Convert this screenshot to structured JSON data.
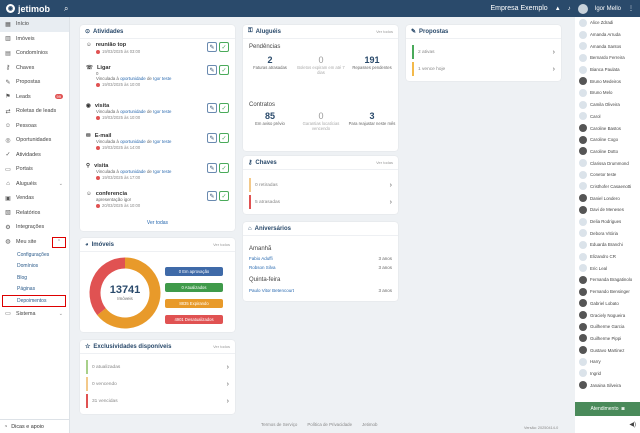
{
  "topbar": {
    "logo": "jetimob",
    "company": "Empresa Exemplo",
    "user": "Igor Mello"
  },
  "sidebar": {
    "items": [
      {
        "icon": "▦",
        "label": "Início",
        "active": true
      },
      {
        "icon": "▥",
        "label": "Imóveis"
      },
      {
        "icon": "▤",
        "label": "Condomínios"
      },
      {
        "icon": "⚷",
        "label": "Chaves"
      },
      {
        "icon": "✎",
        "label": "Propostas"
      },
      {
        "icon": "⚑",
        "label": "Leads",
        "badge": "99"
      },
      {
        "icon": "⇄",
        "label": "Roletas de leads"
      },
      {
        "icon": "☺",
        "label": "Pessoas"
      },
      {
        "icon": "◎",
        "label": "Oportunidades"
      },
      {
        "icon": "✓",
        "label": "Atividades"
      },
      {
        "icon": "▭",
        "label": "Portais"
      },
      {
        "icon": "⌂",
        "label": "Aluguéis",
        "chevron": true
      },
      {
        "icon": "▣",
        "label": "Vendas"
      },
      {
        "icon": "▧",
        "label": "Relatórios"
      },
      {
        "icon": "⚙",
        "label": "Integrações"
      },
      {
        "icon": "◍",
        "label": "Meu site"
      }
    ],
    "sub": [
      "Configurações",
      "Domínios",
      "Blog",
      "Páginas",
      "Depoimentos"
    ],
    "sistema": "Sistema",
    "bottom": "Dicas e apoio"
  },
  "atividades": {
    "title": "Atividades",
    "items": [
      {
        "icon": "☺",
        "title": "reunião top",
        "date": "19/03/2025 às 03:00"
      },
      {
        "icon": "☏",
        "title": "Ligar",
        "desc": "0",
        "prefix": "Vinculada à",
        "link1": "oportunidade",
        "mid": "de",
        "link2": "Igor teste",
        "date": "19/03/2025 às 10:00"
      },
      {
        "icon": "◉",
        "title": "visita",
        "prefix": "Vinculada à",
        "link1": "oportunidade",
        "mid": "de",
        "link2": "Igor teste",
        "date": "19/03/2025 às 10:00"
      },
      {
        "icon": "✉",
        "title": "E-mail",
        "prefix": "Vinculada à",
        "link1": "oportunidade",
        "mid": "de",
        "link2": "Igor teste",
        "date": "19/03/2025 às 14:00"
      },
      {
        "icon": "⚲",
        "title": "visita",
        "prefix": "Vinculada à",
        "link1": "oportunidade",
        "mid": "de",
        "link2": "Igor teste",
        "date": "19/03/2025 às 17:00"
      },
      {
        "icon": "☺",
        "title": "conferencia",
        "desc": "apresentação igor",
        "date": "20/03/2025 às 10:00"
      }
    ],
    "ver_todas": "Ver todas"
  },
  "imoveis": {
    "title": "Imóveis",
    "vt": "Ver todos",
    "total": "13741",
    "total_label": "Imóveis",
    "pills": [
      {
        "label": "0 Em aprovação",
        "color": "#3f6aa8"
      },
      {
        "label": "0 Atualizados",
        "color": "#3f9a4a"
      },
      {
        "label": "8835 Expirando",
        "color": "#e89a2a"
      },
      {
        "label": "4901 Desatualizados",
        "color": "#e05252"
      }
    ],
    "chart_data": {
      "type": "pie",
      "categories": [
        "Em aprovação",
        "Atualizados",
        "Expirando",
        "Desatualizados"
      ],
      "values": [
        0,
        0,
        8835,
        4901
      ],
      "colors": [
        "#3f6aa8",
        "#3f9a4a",
        "#e89a2a",
        "#e05252"
      ]
    }
  },
  "exclusividades": {
    "title": "Exclusividades disponíveis",
    "vt": "Ver todos",
    "items": [
      {
        "label": "0 atualizadas",
        "color": "#a8d08a"
      },
      {
        "label": "0 vencendo",
        "color": "#f3c98a"
      },
      {
        "label": "31 vencidas",
        "color": "#e05252"
      }
    ]
  },
  "alugueis": {
    "title": "Aluguéis",
    "vt": "Ver todos",
    "pend_label": "Pendências",
    "pend": [
      {
        "n": "2",
        "l": "Faturas atrasadas"
      },
      {
        "n": "0",
        "l": "Boletos expiram em até 7 dias",
        "muted": true
      },
      {
        "n": "191",
        "l": "Repasses pendentes"
      }
    ],
    "contratos_label": "Contratos",
    "contratos": [
      {
        "n": "85",
        "l": "Em aviso prévio"
      },
      {
        "n": "0",
        "l": "Garantias locatícias vencendo",
        "muted": true
      },
      {
        "n": "3",
        "l": "Para reajustar neste mês"
      }
    ]
  },
  "chaves": {
    "title": "Chaves",
    "vt": "Ver todas",
    "items": [
      {
        "label": "0 retiradas",
        "color": "#f3c98a"
      },
      {
        "label": "5 atrasadas",
        "color": "#e05252"
      }
    ]
  },
  "aniversarios": {
    "title": "Aniversários",
    "amanha": "Amanhã",
    "amanha_list": [
      {
        "name": "Fabio Aduffi",
        "years": "3 anos"
      },
      {
        "name": "Robson Silva",
        "years": "3 anos"
      }
    ],
    "quinta": "Quinta-feira",
    "quinta_list": [
      {
        "name": "Paulo Vitor Betencourt",
        "years": "3 anos"
      }
    ]
  },
  "propostas": {
    "title": "Propostas",
    "items": [
      {
        "label": "2 ativas",
        "color": "#4aaa5a"
      },
      {
        "label": "1 vence hoje",
        "color": "#f3b94a"
      }
    ]
  },
  "people": [
    "Alice Zdradi",
    "Amanda Arruda",
    "Amanda Santos",
    "Bernardo Ferreira",
    "Bianca Paulata",
    "Bruno Medeiros",
    "Bruno Melo",
    "Camila Oliveira",
    "Carol",
    "Caroline Bastos",
    "Caroline Cogo",
    "Caroline Dotto",
    "Clarissa Drummond",
    "Conetor teste",
    "Cristhofer Casaenotti",
    "Daniel Londero",
    "Davi de Meneses",
    "Delia Rodrigues",
    "Debora Vitória",
    "Eduarda Branchi",
    "Elizandro CR",
    "Eric Leal",
    "Fernanda Bragatinolo",
    "Fernando Bensinger",
    "Gabriel Lobato",
    "Graciely Nogueira",
    "Guilherme Garcia",
    "Guilherme Pippi",
    "Gustavo Martinez",
    "Harry",
    "Ingrid",
    "Janaina Silveira"
  ],
  "atendimento": "Atendimento",
  "footer": {
    "termos": "Termos de Serviço",
    "politica": "Política de Privacidade",
    "jetimob": "Jetimob",
    "version": "Versão: 20250414-0"
  }
}
